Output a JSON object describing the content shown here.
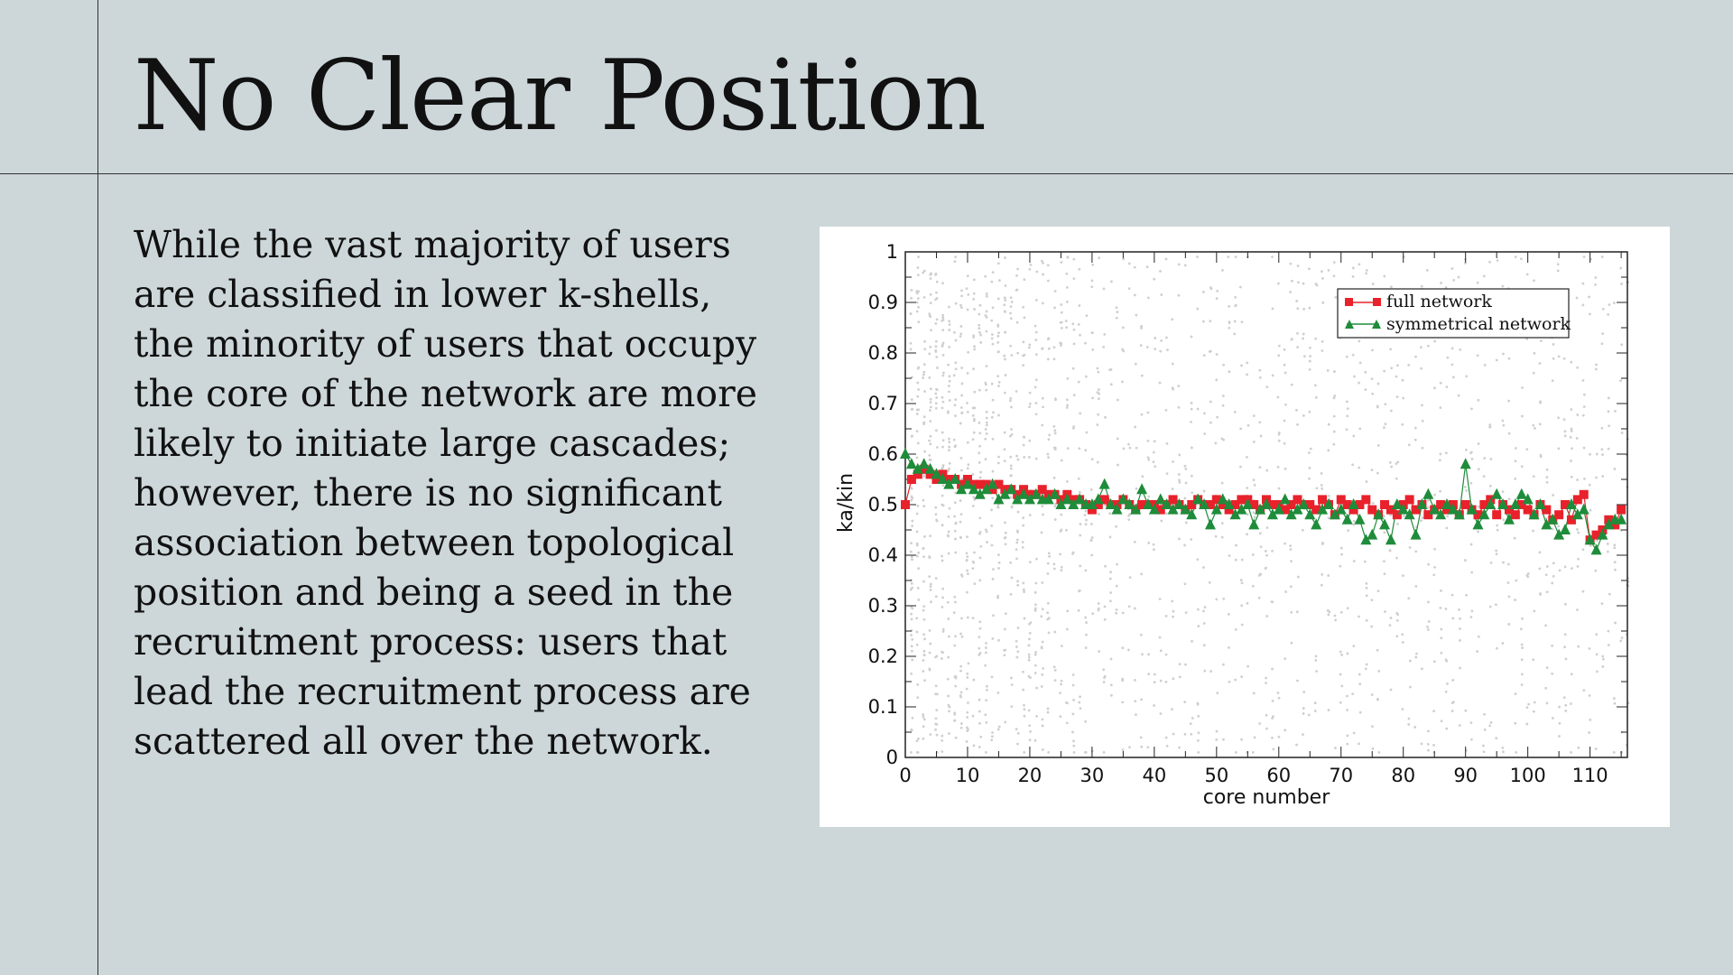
{
  "slide": {
    "title": "No Clear Position",
    "body": "While the vast majority of users are classified in lower k-shells, the minority of users that occupy the core of the network are more likely to initiate large cascades; however, there is no significant association between topological position and being a seed in the recruitment process: users that lead the recruitment process are scattered all over the network."
  },
  "chart_data": {
    "type": "scatter",
    "xlabel": "core number",
    "ylabel": "ka/kin",
    "xlim": [
      0,
      116
    ],
    "ylim": [
      0,
      1
    ],
    "xticks": [
      0,
      10,
      20,
      30,
      40,
      50,
      60,
      70,
      80,
      90,
      100,
      110
    ],
    "yticks": [
      0,
      0.1,
      0.2,
      0.3,
      0.4,
      0.5,
      0.6,
      0.7,
      0.8,
      0.9,
      1
    ],
    "ytick_labels": [
      "0",
      "0.1",
      "0.2",
      "0.3",
      "0.4",
      "0.5",
      "0.6",
      "0.7",
      "0.8",
      "0.9",
      "1"
    ],
    "legend_position": "top-right",
    "background_scatter": "dense grey points spanning 0–1 at every core number",
    "series": [
      {
        "name": "full network",
        "marker": "square",
        "color": "#e8212b",
        "x": [
          0,
          1,
          2,
          3,
          4,
          5,
          6,
          7,
          8,
          9,
          10,
          11,
          12,
          13,
          14,
          15,
          16,
          17,
          18,
          19,
          20,
          21,
          22,
          23,
          24,
          25,
          26,
          27,
          28,
          29,
          30,
          31,
          32,
          33,
          34,
          35,
          36,
          37,
          38,
          39,
          40,
          41,
          42,
          43,
          44,
          45,
          46,
          47,
          48,
          49,
          50,
          51,
          52,
          53,
          54,
          55,
          56,
          57,
          58,
          59,
          60,
          61,
          62,
          63,
          64,
          65,
          66,
          67,
          68,
          69,
          70,
          71,
          72,
          73,
          74,
          75,
          76,
          77,
          78,
          79,
          80,
          81,
          82,
          83,
          84,
          85,
          86,
          87,
          88,
          89,
          90,
          91,
          92,
          93,
          94,
          95,
          96,
          97,
          98,
          99,
          100,
          101,
          102,
          103,
          104,
          105,
          106,
          107,
          108,
          109,
          110,
          111,
          112,
          113,
          114,
          115
        ],
        "y": [
          0.5,
          0.55,
          0.56,
          0.57,
          0.56,
          0.55,
          0.56,
          0.55,
          0.55,
          0.54,
          0.55,
          0.54,
          0.54,
          0.54,
          0.53,
          0.54,
          0.53,
          0.53,
          0.52,
          0.53,
          0.52,
          0.52,
          0.53,
          0.52,
          0.52,
          0.51,
          0.52,
          0.51,
          0.51,
          0.5,
          0.49,
          0.5,
          0.51,
          0.5,
          0.5,
          0.51,
          0.5,
          0.49,
          0.5,
          0.5,
          0.5,
          0.49,
          0.5,
          0.51,
          0.5,
          0.49,
          0.5,
          0.51,
          0.5,
          0.5,
          0.51,
          0.5,
          0.49,
          0.5,
          0.51,
          0.51,
          0.5,
          0.49,
          0.51,
          0.5,
          0.5,
          0.49,
          0.5,
          0.51,
          0.5,
          0.5,
          0.49,
          0.51,
          0.5,
          0.48,
          0.51,
          0.5,
          0.49,
          0.5,
          0.51,
          0.49,
          0.48,
          0.5,
          0.49,
          0.48,
          0.5,
          0.51,
          0.49,
          0.5,
          0.48,
          0.49,
          0.5,
          0.49,
          0.5,
          0.48,
          0.5,
          0.49,
          0.48,
          0.5,
          0.51,
          0.48,
          0.5,
          0.49,
          0.48,
          0.5,
          0.49,
          0.48,
          0.5,
          0.49,
          0.47,
          0.48,
          0.5,
          0.47,
          0.51,
          0.52,
          0.43,
          0.44,
          0.45,
          0.47,
          0.46,
          0.49
        ]
      },
      {
        "name": "symmetrical network",
        "marker": "triangle",
        "color": "#1e8c3a",
        "x": [
          0,
          1,
          2,
          3,
          4,
          5,
          6,
          7,
          8,
          9,
          10,
          11,
          12,
          13,
          14,
          15,
          16,
          17,
          18,
          19,
          20,
          21,
          22,
          23,
          24,
          25,
          26,
          27,
          28,
          29,
          30,
          31,
          32,
          33,
          34,
          35,
          36,
          37,
          38,
          39,
          40,
          41,
          42,
          43,
          44,
          45,
          46,
          47,
          48,
          49,
          50,
          51,
          52,
          53,
          54,
          55,
          56,
          57,
          58,
          59,
          60,
          61,
          62,
          63,
          64,
          65,
          66,
          67,
          68,
          69,
          70,
          71,
          72,
          73,
          74,
          75,
          76,
          77,
          78,
          79,
          80,
          81,
          82,
          83,
          84,
          85,
          86,
          87,
          88,
          89,
          90,
          91,
          92,
          93,
          94,
          95,
          96,
          97,
          98,
          99,
          100,
          101,
          102,
          103,
          104,
          105,
          106,
          107,
          108,
          109,
          110,
          111,
          112,
          113,
          114,
          115
        ],
        "y": [
          0.6,
          0.58,
          0.57,
          0.58,
          0.57,
          0.56,
          0.55,
          0.54,
          0.55,
          0.53,
          0.54,
          0.53,
          0.52,
          0.53,
          0.54,
          0.51,
          0.52,
          0.53,
          0.51,
          0.52,
          0.51,
          0.52,
          0.51,
          0.51,
          0.52,
          0.5,
          0.51,
          0.5,
          0.51,
          0.5,
          0.5,
          0.51,
          0.54,
          0.5,
          0.49,
          0.51,
          0.5,
          0.49,
          0.53,
          0.5,
          0.49,
          0.51,
          0.5,
          0.49,
          0.5,
          0.49,
          0.48,
          0.51,
          0.5,
          0.46,
          0.49,
          0.51,
          0.5,
          0.48,
          0.49,
          0.5,
          0.46,
          0.49,
          0.5,
          0.48,
          0.49,
          0.51,
          0.48,
          0.49,
          0.5,
          0.48,
          0.46,
          0.49,
          0.5,
          0.48,
          0.49,
          0.47,
          0.5,
          0.47,
          0.43,
          0.44,
          0.48,
          0.46,
          0.43,
          0.5,
          0.49,
          0.48,
          0.44,
          0.5,
          0.52,
          0.49,
          0.48,
          0.5,
          0.49,
          0.48,
          0.58,
          0.49,
          0.46,
          0.48,
          0.5,
          0.52,
          0.5,
          0.47,
          0.5,
          0.52,
          0.51,
          0.48,
          0.5,
          0.46,
          0.47,
          0.44,
          0.45,
          0.5,
          0.48,
          0.49,
          0.43,
          0.41,
          0.44,
          0.46,
          0.47,
          0.47
        ]
      }
    ]
  }
}
